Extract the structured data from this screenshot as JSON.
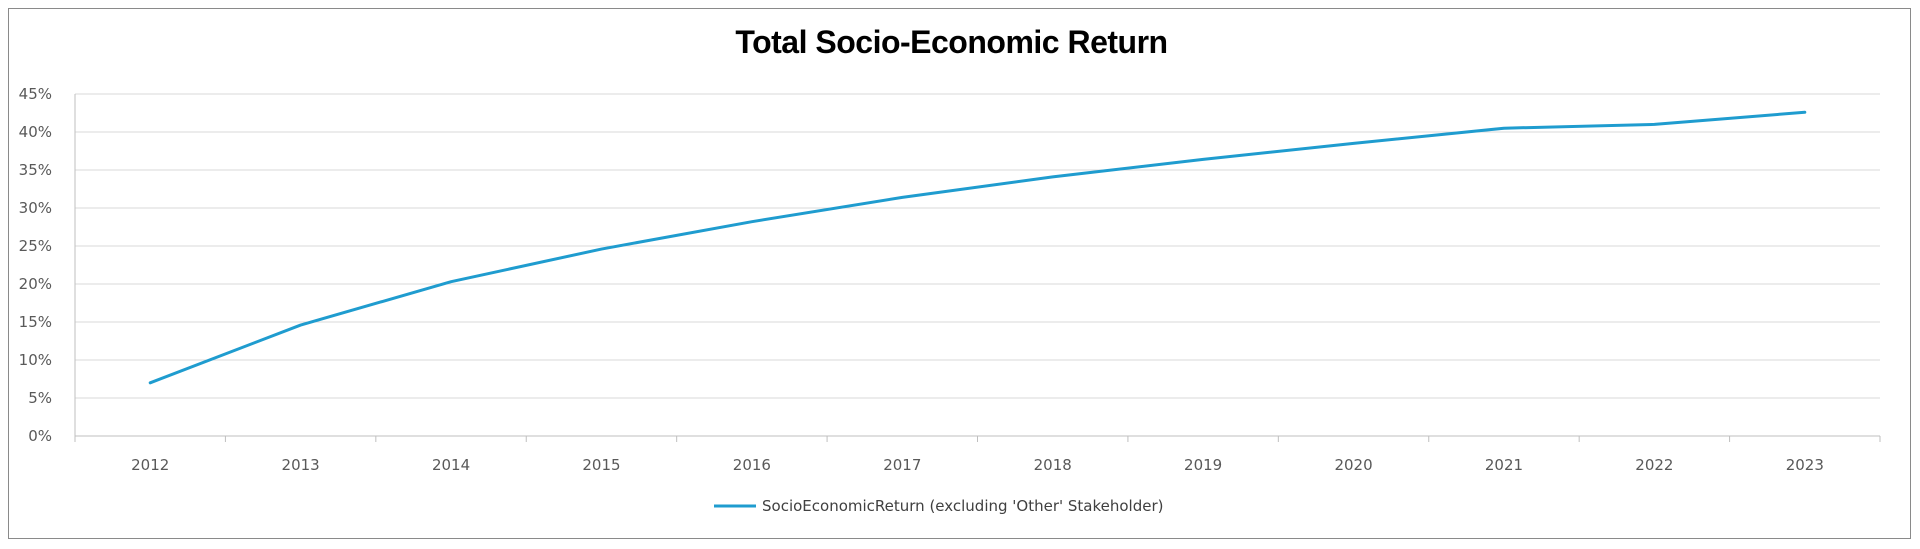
{
  "chart_data": {
    "type": "line",
    "title": "Total Socio-Economic Return",
    "xlabel": "",
    "ylabel": "",
    "categories": [
      "2012",
      "2013",
      "2014",
      "2015",
      "2016",
      "2017",
      "2018",
      "2019",
      "2020",
      "2021",
      "2022",
      "2023"
    ],
    "series": [
      {
        "name": "SocioEconomicReturn (excluding 'Other' Stakeholder)",
        "color": "#1f9ccf",
        "values": [
          7.0,
          14.6,
          20.3,
          24.6,
          28.2,
          31.4,
          34.1,
          36.4,
          38.5,
          40.5,
          41.0,
          42.6
        ]
      }
    ],
    "ylim": [
      0,
      45
    ],
    "yticks": [
      "0%",
      "5%",
      "10%",
      "15%",
      "20%",
      "25%",
      "30%",
      "35%",
      "40%",
      "45%"
    ],
    "grid": true,
    "legend_position": "bottom"
  }
}
